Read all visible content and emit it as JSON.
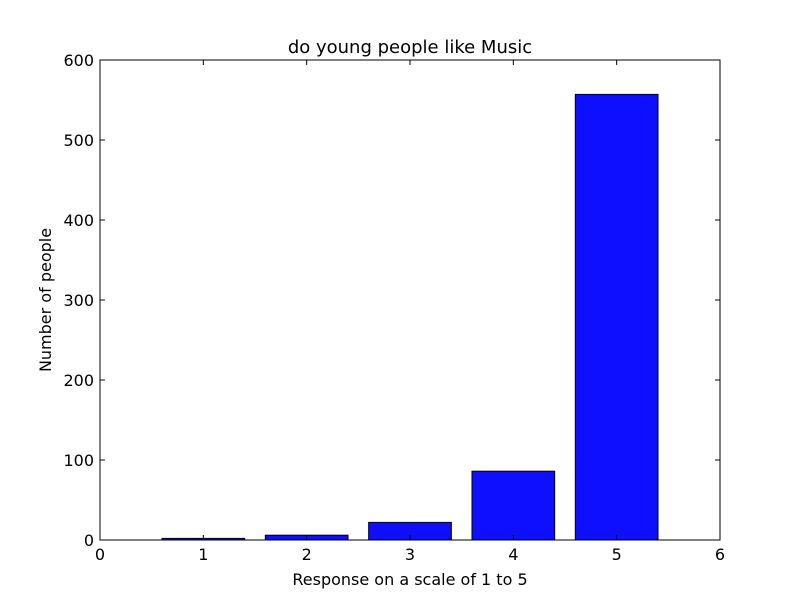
{
  "chart_data": {
    "type": "bar",
    "title": "do young people like Music",
    "xlabel": "Response on a scale of 1 to 5",
    "ylabel": "Number of people",
    "categories": [
      1,
      2,
      3,
      4,
      5
    ],
    "values": [
      2,
      6,
      22,
      86,
      557
    ],
    "xlim": [
      0,
      6
    ],
    "ylim": [
      0,
      600
    ],
    "xticks": [
      0,
      1,
      2,
      3,
      4,
      5,
      6
    ],
    "yticks": [
      0,
      100,
      200,
      300,
      400,
      500,
      600
    ],
    "bar_width": 0.8,
    "bar_color": "#0f0fff",
    "bar_edge_color": "#000000",
    "grid": false,
    "legend": "none"
  }
}
